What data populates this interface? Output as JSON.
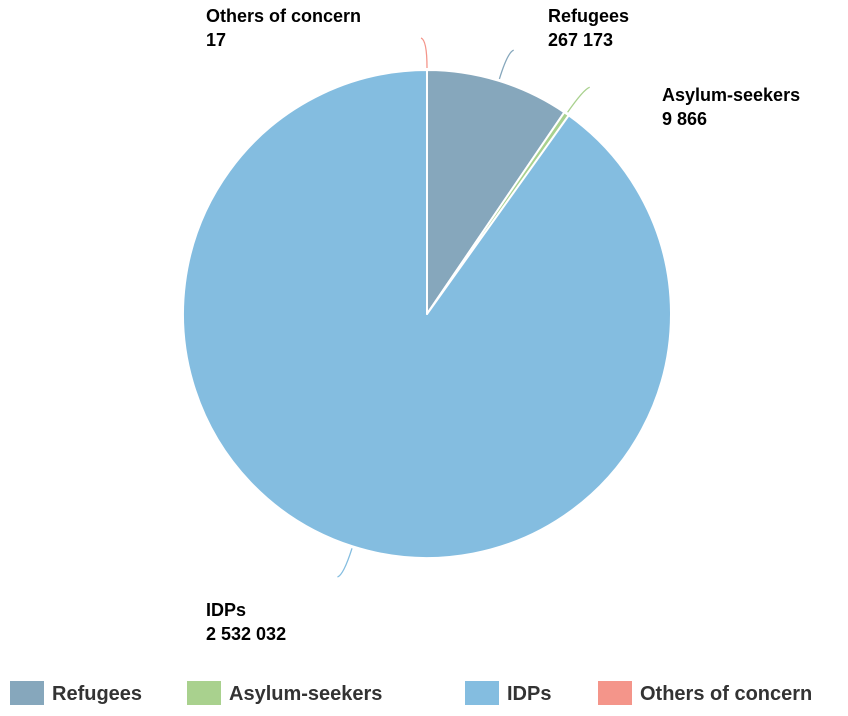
{
  "chart_data": {
    "type": "pie",
    "title": "",
    "series": [
      {
        "name": "Refugees",
        "value": 267173,
        "value_label": "267 173",
        "color": "#86a7bc"
      },
      {
        "name": "Asylum-seekers",
        "value": 9866,
        "value_label": "9 866",
        "color": "#a9d18e"
      },
      {
        "name": "IDPs",
        "value": 2532032,
        "value_label": "2 532 032",
        "color": "#84bde0"
      },
      {
        "name": "Others of concern",
        "value": 17,
        "value_label": "17",
        "color": "#f4958a"
      }
    ],
    "legend": {
      "position": "bottom",
      "items": [
        "Refugees",
        "Asylum-seekers",
        "IDPs",
        "Others of concern"
      ]
    }
  }
}
